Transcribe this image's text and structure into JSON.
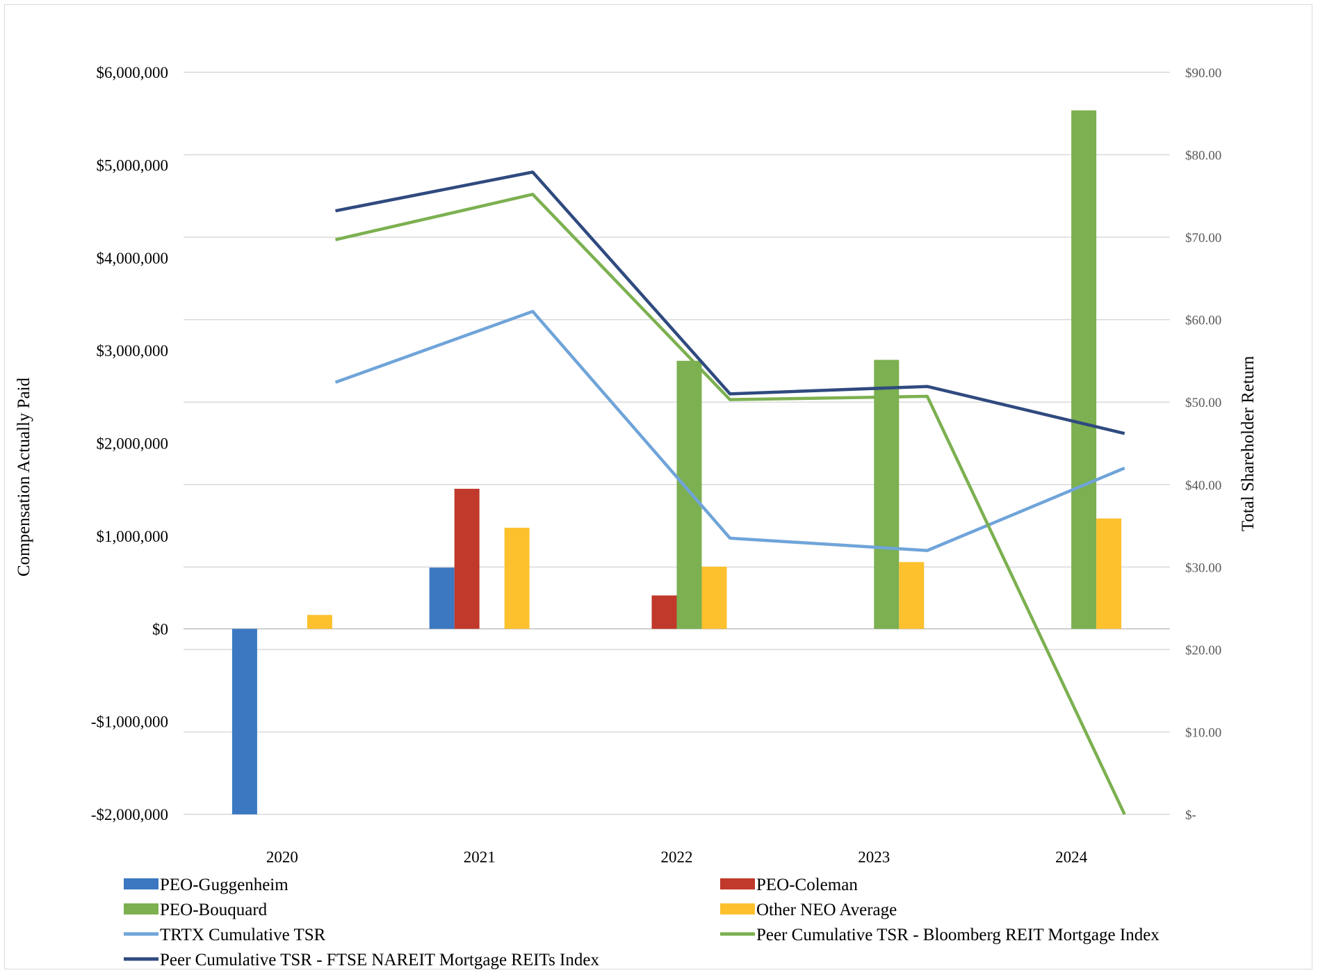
{
  "chart_data": {
    "type": "bar",
    "categories": [
      "2020",
      "2021",
      "2022",
      "2023",
      "2024"
    ],
    "y_left": {
      "label": "Compensation Actually Paid",
      "range": [
        -2000000,
        6000000
      ],
      "ticks": [
        -2000000,
        -1000000,
        0,
        1000000,
        2000000,
        3000000,
        4000000,
        5000000,
        6000000
      ],
      "tick_labels": [
        "-$2,000,000",
        "-$1,000,000",
        "$0",
        "$1,000,000",
        "$2,000,000",
        "$3,000,000",
        "$4,000,000",
        "$5,000,000",
        "$6,000,000"
      ]
    },
    "y_right": {
      "label": "Total Shareholder Return",
      "range": [
        0,
        90
      ],
      "ticks": [
        0,
        10,
        20,
        30,
        40,
        50,
        60,
        70,
        80,
        90
      ],
      "tick_labels": [
        "$-",
        "$10.00",
        "$20.00",
        "$30.00",
        "$40.00",
        "$50.00",
        "$60.00",
        "$70.00",
        "$80.00",
        "$90.00"
      ]
    },
    "bar_series": [
      {
        "name": "PEO-Guggenheim",
        "color": "#3b78c1",
        "values": [
          -2000000,
          660000,
          null,
          null,
          null
        ]
      },
      {
        "name": "PEO-Coleman",
        "color": "#c0392b",
        "values": [
          null,
          1510000,
          360000,
          null,
          null
        ]
      },
      {
        "name": "PEO-Bouquard",
        "color": "#7cb050",
        "values": [
          null,
          null,
          2890000,
          2900000,
          5590000
        ]
      },
      {
        "name": "Other NEO Average",
        "color": "#fcc12d",
        "values": [
          150000,
          1090000,
          670000,
          720000,
          1190000
        ]
      }
    ],
    "line_series": [
      {
        "name": "TRTX Cumulative TSR",
        "color": "#6fa4d9",
        "values": [
          52.4,
          61.0,
          33.5,
          32.0,
          42.0
        ]
      },
      {
        "name": "Peer Cumulative TSR - Bloomberg REIT Mortgage Index",
        "color": "#7cb050",
        "values": [
          69.7,
          75.2,
          50.3,
          50.7,
          0.0
        ]
      },
      {
        "name": "Peer Cumulative TSR - FTSE NAREIT Mortgage REITs Index",
        "color": "#2f4a7f",
        "values": [
          73.2,
          77.9,
          51.0,
          51.9,
          46.2
        ]
      }
    ],
    "legend_position": "bottom",
    "grid": true
  }
}
